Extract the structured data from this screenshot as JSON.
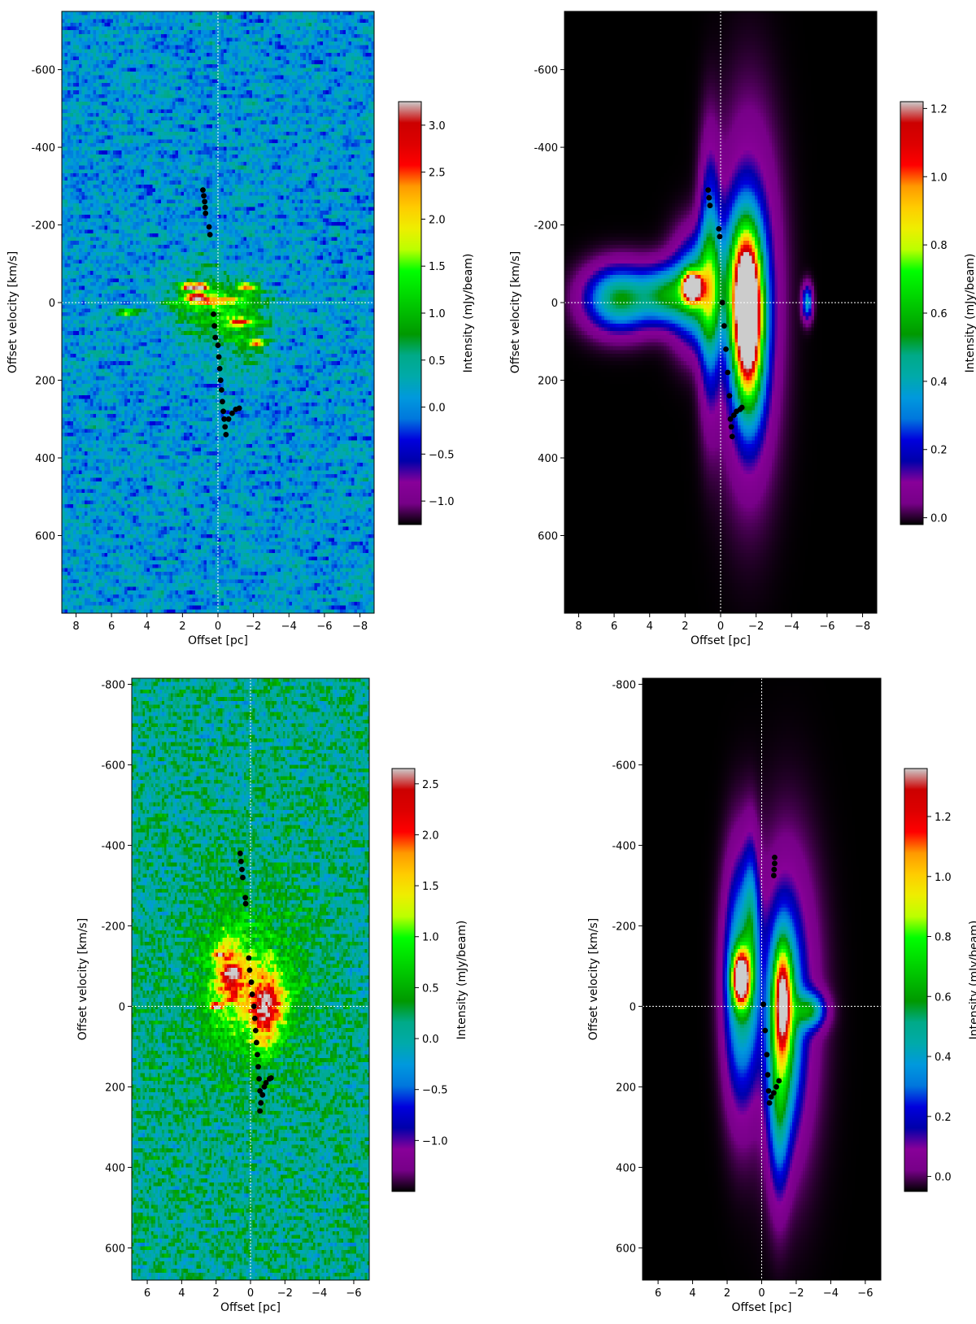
{
  "chart_data": [
    {
      "type": "heatmap",
      "panel": "top-left",
      "xlabel": "Offset [pc]",
      "ylabel": "Offset velocity [km/s]",
      "colorbar_label": "Intensity (mJy/beam)",
      "xlim": [
        8.8,
        -8.8
      ],
      "ylim": [
        -750,
        800
      ],
      "xticks": [
        8,
        6,
        4,
        2,
        0,
        -2,
        -4,
        -6,
        -8
      ],
      "xtick_labels": [
        "8",
        "6",
        "4",
        "2",
        "0",
        "−2",
        "−4",
        "−6",
        "−8"
      ],
      "yticks": [
        -600,
        -400,
        -200,
        0,
        200,
        400,
        600
      ],
      "ytick_labels": [
        "-600",
        "-400",
        "-200",
        "0",
        "200",
        "400",
        "600"
      ],
      "clim": [
        -1.25,
        3.25
      ],
      "cticks": [
        3.0,
        2.5,
        2.0,
        1.5,
        1.0,
        0.5,
        0.0,
        -0.5,
        -1.0
      ],
      "ctick_labels": [
        "3.0",
        "2.5",
        "2.0",
        "1.5",
        "1.0",
        "0.5",
        "0.0",
        "−0.5",
        "−1.0"
      ],
      "colormap": "nipy_spectral",
      "grid": false,
      "crosshair": {
        "x": 0,
        "y": 0
      },
      "noise_map": true,
      "sources": [
        {
          "x": 1.6,
          "y": -40,
          "amp": 2.8,
          "sx": 0.35,
          "sy": 6
        },
        {
          "x": 0.9,
          "y": -40,
          "amp": 3.0,
          "sx": 0.25,
          "sy": 6
        },
        {
          "x": -1.7,
          "y": -40,
          "amp": 2.3,
          "sx": 0.4,
          "sy": 6
        },
        {
          "x": -1.2,
          "y": 50,
          "amp": 2.0,
          "sx": 0.4,
          "sy": 6
        },
        {
          "x": -2.2,
          "y": 105,
          "amp": 2.2,
          "sx": 0.3,
          "sy": 6
        },
        {
          "x": 1.2,
          "y": -15,
          "amp": 1.9,
          "sx": 0.4,
          "sy": 6
        },
        {
          "x": 5.1,
          "y": 25,
          "amp": 1.6,
          "sx": 0.4,
          "sy": 6
        },
        {
          "x": 0.2,
          "y": -5,
          "amp": 1.2,
          "sx": 1.6,
          "sy": 8
        },
        {
          "x": 0.9,
          "y": 0,
          "amp": 1.0,
          "sx": 1.2,
          "sy": 60
        },
        {
          "x": -1.4,
          "y": 60,
          "amp": 0.9,
          "sx": 1.2,
          "sy": 70
        }
      ],
      "points": [
        [
          0.85,
          -290
        ],
        [
          0.8,
          -275
        ],
        [
          0.75,
          -260
        ],
        [
          0.72,
          -245
        ],
        [
          0.7,
          -230
        ],
        [
          0.5,
          -195
        ],
        [
          0.45,
          -175
        ],
        [
          0.25,
          30
        ],
        [
          0.2,
          60
        ],
        [
          0.15,
          90
        ],
        [
          0.0,
          110
        ],
        [
          -0.05,
          140
        ],
        [
          -0.1,
          170
        ],
        [
          -0.15,
          200
        ],
        [
          -0.2,
          225
        ],
        [
          -0.25,
          255
        ],
        [
          -0.3,
          280
        ],
        [
          -0.35,
          300
        ],
        [
          -0.4,
          320
        ],
        [
          -0.45,
          340
        ],
        [
          -0.6,
          300
        ],
        [
          -0.8,
          285
        ],
        [
          -1.0,
          275
        ],
        [
          -1.2,
          272
        ]
      ]
    },
    {
      "type": "heatmap",
      "panel": "top-right",
      "xlabel": "Offset [pc]",
      "ylabel": "Offset velocity [km/s]",
      "colorbar_label": "Intensity (mJy/beam)",
      "xlim": [
        8.8,
        -8.8
      ],
      "ylim": [
        -750,
        800
      ],
      "xticks": [
        8,
        6,
        4,
        2,
        0,
        -2,
        -4,
        -6,
        -8
      ],
      "xtick_labels": [
        "8",
        "6",
        "4",
        "2",
        "0",
        "−2",
        "−4",
        "−6",
        "−8"
      ],
      "yticks": [
        -600,
        -400,
        -200,
        0,
        200,
        400,
        600
      ],
      "ytick_labels": [
        "-600",
        "-400",
        "-200",
        "0",
        "200",
        "400",
        "600"
      ],
      "clim": [
        -0.02,
        1.22
      ],
      "cticks": [
        1.2,
        1.0,
        0.8,
        0.6,
        0.4,
        0.2,
        0.0
      ],
      "ctick_labels": [
        "1.2",
        "1.0",
        "0.8",
        "0.6",
        "0.4",
        "0.2",
        "0.0"
      ],
      "colormap": "nipy_spectral",
      "grid": false,
      "crosshair": {
        "x": 0,
        "y": 0
      },
      "noise_map": false,
      "sources": [
        {
          "x": 1.6,
          "y": -40,
          "amp": 1.2,
          "sx": 0.35,
          "sy": 25
        },
        {
          "x": 1.3,
          "y": -30,
          "amp": 0.55,
          "sx": 0.9,
          "sy": 90
        },
        {
          "x": 0.6,
          "y": -60,
          "amp": 0.45,
          "sx": 0.4,
          "sy": 200
        },
        {
          "x": 3.0,
          "y": -20,
          "amp": 0.45,
          "sx": 1.0,
          "sy": 50
        },
        {
          "x": 5.7,
          "y": -10,
          "amp": 0.55,
          "sx": 1.3,
          "sy": 55
        },
        {
          "x": -1.5,
          "y": 20,
          "amp": 0.95,
          "sx": 0.5,
          "sy": 120
        },
        {
          "x": -1.6,
          "y": 100,
          "amp": 0.55,
          "sx": 0.6,
          "sy": 150
        },
        {
          "x": -1.2,
          "y": -60,
          "amp": 0.45,
          "sx": 0.7,
          "sy": 120
        },
        {
          "x": -1.6,
          "y": 0,
          "amp": 0.3,
          "sx": 1.1,
          "sy": 280
        },
        {
          "x": -4.9,
          "y": 0,
          "amp": 0.4,
          "sx": 0.2,
          "sy": 30
        }
      ],
      "points": [
        [
          0.7,
          -290
        ],
        [
          0.65,
          -270
        ],
        [
          0.6,
          -250
        ],
        [
          0.1,
          -190
        ],
        [
          0.05,
          -170
        ],
        [
          -0.1,
          0
        ],
        [
          -0.2,
          60
        ],
        [
          -0.3,
          120
        ],
        [
          -0.4,
          180
        ],
        [
          -0.5,
          240
        ],
        [
          -0.55,
          300
        ],
        [
          -0.6,
          320
        ],
        [
          -0.65,
          345
        ],
        [
          -0.75,
          290
        ],
        [
          -0.9,
          280
        ],
        [
          -1.1,
          275
        ],
        [
          -1.2,
          270
        ]
      ]
    },
    {
      "type": "heatmap",
      "panel": "bottom-left",
      "xlabel": "Offset [pc]",
      "ylabel": "Offset velocity [km/s]",
      "colorbar_label": "Intensity (mJy/beam)",
      "xlim": [
        6.9,
        -6.9
      ],
      "ylim": [
        -815,
        680
      ],
      "xticks": [
        6,
        4,
        2,
        0,
        -2,
        -4,
        -6
      ],
      "xtick_labels": [
        "6",
        "4",
        "2",
        "0",
        "−2",
        "−4",
        "−6"
      ],
      "yticks": [
        -800,
        -600,
        -400,
        -200,
        0,
        200,
        400,
        600
      ],
      "ytick_labels": [
        "-800",
        "-600",
        "-400",
        "-200",
        "0",
        "200",
        "400",
        "600"
      ],
      "clim": [
        -1.5,
        2.65
      ],
      "cticks": [
        2.5,
        2.0,
        1.5,
        1.0,
        0.5,
        0.0,
        -0.5,
        -1.0
      ],
      "ctick_labels": [
        "2.5",
        "2.0",
        "1.5",
        "1.0",
        "0.5",
        "0.0",
        "−0.5",
        "−1.0"
      ],
      "colormap": "nipy_spectral",
      "grid": false,
      "crosshair": {
        "x": 0,
        "y": 0
      },
      "noise_map": true,
      "sources": [
        {
          "x": 1.2,
          "y": -80,
          "amp": 1.5,
          "sx": 0.7,
          "sy": 70
        },
        {
          "x": 1.9,
          "y": -130,
          "amp": 1.4,
          "sx": 0.3,
          "sy": 6
        },
        {
          "x": 1.0,
          "y": -80,
          "amp": 1.5,
          "sx": 0.3,
          "sy": 6
        },
        {
          "x": 2.0,
          "y": 0,
          "amp": 2.2,
          "sx": 0.25,
          "sy": 6
        },
        {
          "x": -1.0,
          "y": -20,
          "amp": 1.3,
          "sx": 0.8,
          "sy": 60
        },
        {
          "x": -0.8,
          "y": 40,
          "amp": 1.0,
          "sx": 0.6,
          "sy": 60
        },
        {
          "x": 0.0,
          "y": -50,
          "amp": 0.6,
          "sx": 2.5,
          "sy": 160
        }
      ],
      "points": [
        [
          0.6,
          -380
        ],
        [
          0.55,
          -360
        ],
        [
          0.5,
          -340
        ],
        [
          0.45,
          -320
        ],
        [
          0.3,
          -270
        ],
        [
          0.28,
          -255
        ],
        [
          0.1,
          -120
        ],
        [
          0.05,
          -90
        ],
        [
          -0.05,
          -60
        ],
        [
          -0.1,
          -30
        ],
        [
          -0.2,
          0
        ],
        [
          -0.25,
          30
        ],
        [
          -0.3,
          60
        ],
        [
          -0.35,
          90
        ],
        [
          -0.4,
          120
        ],
        [
          -0.45,
          150
        ],
        [
          -0.5,
          180
        ],
        [
          -0.55,
          210
        ],
        [
          -0.6,
          240
        ],
        [
          -0.55,
          260
        ],
        [
          -0.7,
          220
        ],
        [
          -0.8,
          200
        ],
        [
          -0.9,
          190
        ],
        [
          -1.1,
          180
        ],
        [
          -1.2,
          178
        ]
      ]
    },
    {
      "type": "heatmap",
      "panel": "bottom-right",
      "xlabel": "Offset [pc]",
      "ylabel": "Offset velocity [km/s]",
      "colorbar_label": "Intensity (mJy/beam)",
      "xlim": [
        6.9,
        -6.9
      ],
      "ylim": [
        -815,
        680
      ],
      "xticks": [
        6,
        4,
        2,
        0,
        -2,
        -4,
        -6
      ],
      "xtick_labels": [
        "6",
        "4",
        "2",
        "0",
        "−2",
        "−4",
        "−6"
      ],
      "yticks": [
        -800,
        -600,
        -400,
        -200,
        0,
        200,
        400,
        600
      ],
      "ytick_labels": [
        "-800",
        "-600",
        "-400",
        "-200",
        "0",
        "200",
        "400",
        "600"
      ],
      "clim": [
        -0.05,
        1.36
      ],
      "cticks": [
        1.2,
        1.0,
        0.8,
        0.6,
        0.4,
        0.2,
        0.0
      ],
      "ctick_labels": [
        "1.2",
        "1.0",
        "0.8",
        "0.6",
        "0.4",
        "0.2",
        "0.0"
      ],
      "colormap": "nipy_spectral",
      "grid": false,
      "crosshair": {
        "x": 0,
        "y": 0
      },
      "noise_map": false,
      "sources": [
        {
          "x": 1.2,
          "y": -70,
          "amp": 1.3,
          "sx": 0.35,
          "sy": 45
        },
        {
          "x": 1.2,
          "y": -60,
          "amp": 0.6,
          "sx": 0.65,
          "sy": 190
        },
        {
          "x": 0.6,
          "y": -200,
          "amp": 0.3,
          "sx": 0.3,
          "sy": 140
        },
        {
          "x": -1.2,
          "y": -20,
          "amp": 0.85,
          "sx": 0.35,
          "sy": 90
        },
        {
          "x": -1.3,
          "y": 40,
          "amp": 0.5,
          "sx": 0.65,
          "sy": 170
        },
        {
          "x": -1.0,
          "y": 250,
          "amp": 0.35,
          "sx": 0.4,
          "sy": 150
        },
        {
          "x": -2.8,
          "y": 10,
          "amp": 0.5,
          "sx": 0.6,
          "sy": 30
        },
        {
          "x": -1.5,
          "y": 0,
          "amp": 0.25,
          "sx": 1.2,
          "sy": 250
        }
      ],
      "points": [
        [
          -0.75,
          -370
        ],
        [
          -0.75,
          -355
        ],
        [
          -0.72,
          -340
        ],
        [
          -0.7,
          -325
        ],
        [
          -0.1,
          -5
        ],
        [
          -0.2,
          60
        ],
        [
          -0.3,
          120
        ],
        [
          -0.35,
          170
        ],
        [
          -0.4,
          210
        ],
        [
          -0.45,
          240
        ],
        [
          -0.55,
          225
        ],
        [
          -0.7,
          215
        ],
        [
          -0.85,
          200
        ],
        [
          -1.0,
          185
        ]
      ]
    }
  ]
}
